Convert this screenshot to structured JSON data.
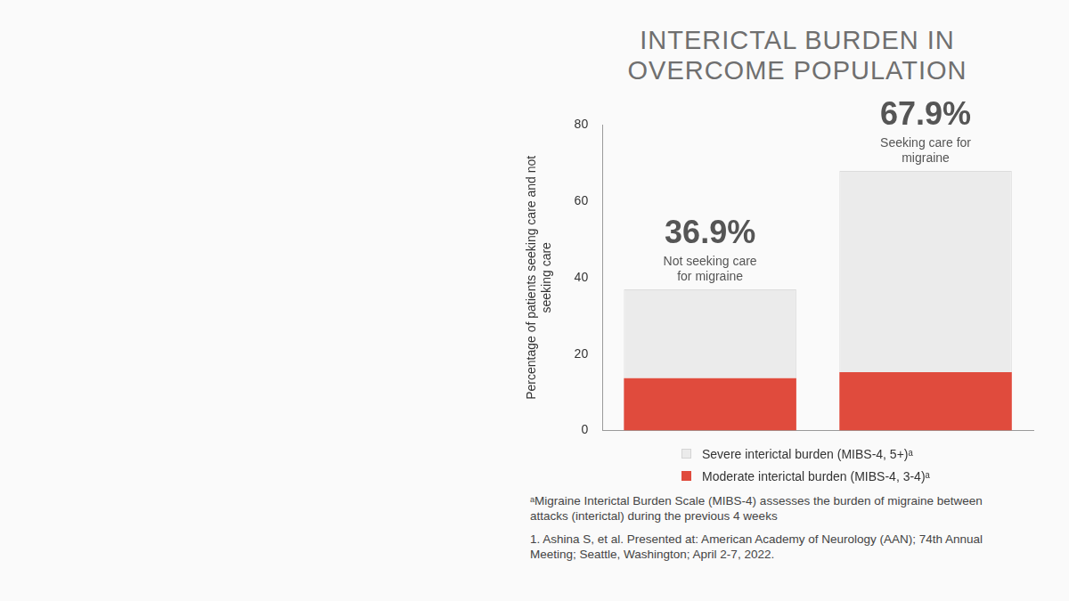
{
  "chart_data": {
    "type": "bar",
    "stacked": true,
    "title": "INTERICTAL BURDEN IN OVERCOME POPULATION",
    "y_label": "Percentage of patients seeking care and not seeking care",
    "categories": [
      "Not seeking care for migraine",
      "Seeking care for migraine"
    ],
    "series": [
      {
        "name": "Moderate interictal burden (MIBS-4, 3-4)ᵃ",
        "color": "#e04b3d",
        "values": [
          13.7,
          15.3
        ]
      },
      {
        "name": "Severe interictal burden (MIBS-4, 5+)ᵃ",
        "color": "#ebebeb",
        "values": [
          23.2,
          52.6
        ]
      }
    ],
    "totals": [
      36.9,
      67.9
    ],
    "total_labels": [
      "36.9%",
      "67.9%"
    ],
    "ylim": [
      0,
      80
    ],
    "yticks": [
      0,
      20,
      40,
      60,
      80
    ],
    "grid": false,
    "tick_labels": "y",
    "legend": "bottom",
    "footnotes": [
      "ᵃMigraine Interictal Burden Scale (MIBS-4) assesses the burden of migraine between attacks (interictal) during the previous 4 weeks",
      "1. Ashina S, et al. Presented at: American Academy of Neurology (AAN); 74th Annual Meeting; Seattle, Washington; April 2-7, 2022."
    ]
  }
}
